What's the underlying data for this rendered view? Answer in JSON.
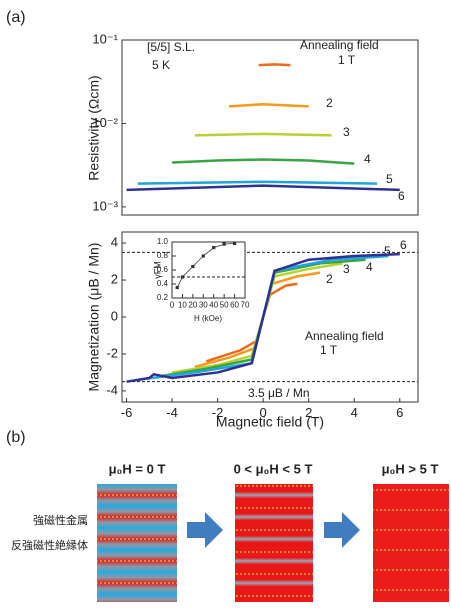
{
  "panel_labels": [
    "(a)",
    "(b)"
  ],
  "chart_data": [
    {
      "type": "line",
      "y_label": "Resistivity (Ωcm)",
      "log_y": true,
      "xlim": [
        -6.2,
        6.8
      ],
      "ylim": [
        0.0008,
        0.1
      ],
      "yticks": [
        {
          "value": 0.001,
          "label": "10⁻³"
        },
        {
          "value": 0.01,
          "label": "10⁻²"
        },
        {
          "value": 0.1,
          "label": "10⁻¹"
        }
      ],
      "annotations": [
        "[5/5] S.L.",
        "5 K",
        "Annealing field"
      ],
      "series": [
        {
          "name": "1 T",
          "color": "#ee6a1a",
          "x": [
            -0.2,
            0.5,
            1.2
          ],
          "values": [
            0.05,
            0.051,
            0.05
          ]
        },
        {
          "name": "2",
          "color": "#f39a1f",
          "x": [
            -1.5,
            0,
            2
          ],
          "values": [
            0.016,
            0.017,
            0.016
          ]
        },
        {
          "name": "3",
          "color": "#b5d334",
          "x": [
            -3,
            0,
            3
          ],
          "values": [
            0.0072,
            0.0075,
            0.0072
          ]
        },
        {
          "name": "4",
          "color": "#3aa445",
          "x": [
            -4,
            -2,
            0,
            2,
            4
          ],
          "values": [
            0.0034,
            0.0036,
            0.0037,
            0.0036,
            0.0033
          ]
        },
        {
          "name": "5",
          "color": "#1fa4dc",
          "x": [
            -5.5,
            0,
            5
          ],
          "values": [
            0.0019,
            0.002,
            0.0019
          ]
        },
        {
          "name": "6",
          "color": "#2e3192",
          "x": [
            -6,
            0,
            6
          ],
          "values": [
            0.0016,
            0.0018,
            0.0016
          ]
        }
      ]
    },
    {
      "type": "line",
      "x_label": "Magnetic field (T)",
      "y_label": "Magnetization (μB / Mn)",
      "xlim": [
        -6.2,
        6.8
      ],
      "ylim": [
        -4.6,
        4.6
      ],
      "xticks": [
        -6,
        -4,
        -2,
        0,
        2,
        4,
        6
      ],
      "yticks": [
        -4,
        -2,
        0,
        2,
        4
      ],
      "hlines": [
        3.5,
        -3.5
      ],
      "annotations": [
        "Annealing field",
        "3.5 μB / Mn"
      ],
      "series": [
        {
          "name": "1 T",
          "color": "#ee6a1a",
          "x": [
            -2.5,
            -1,
            -0.3,
            0,
            0.3,
            1,
            1.5
          ],
          "values": [
            -2.4,
            -1.8,
            -1.3,
            0,
            1.2,
            1.7,
            1.8
          ]
        },
        {
          "name": "2",
          "color": "#f39a1f",
          "x": [
            -3,
            -1.5,
            -0.4,
            0,
            0.4,
            1.5,
            2.5
          ],
          "values": [
            -2.7,
            -2.2,
            -1.7,
            0,
            1.8,
            2.2,
            2.4
          ]
        },
        {
          "name": "3",
          "color": "#b5d334",
          "x": [
            -4,
            -2,
            -0.5,
            0,
            0.5,
            2,
            3.5
          ],
          "values": [
            -3,
            -2.6,
            -2.1,
            0,
            2.2,
            2.6,
            2.9
          ]
        },
        {
          "name": "4",
          "color": "#3aa445",
          "x": [
            -4.5,
            -2.5,
            -0.5,
            0,
            0.5,
            2.5,
            4.5
          ],
          "values": [
            -3.2,
            -2.8,
            -2.3,
            0,
            2.4,
            2.9,
            3.1
          ]
        },
        {
          "name": "5",
          "color": "#1fa4dc",
          "x": [
            -5.5,
            -3,
            -0.5,
            0,
            0.5,
            3,
            5.5
          ],
          "values": [
            -3.4,
            -3,
            -2.5,
            0,
            2.5,
            3.1,
            3.3
          ]
        },
        {
          "name": "6",
          "color": "#2e3192",
          "x": [
            -6,
            -5,
            -4.8,
            -4,
            -2,
            -0.5,
            0,
            0.5,
            2,
            4,
            6
          ],
          "values": [
            -3.5,
            -3.3,
            -3.1,
            -3.3,
            -3,
            -2.5,
            0,
            2.5,
            3.1,
            3.3,
            3.4
          ]
        }
      ]
    },
    {
      "type": "line",
      "markers": true,
      "x_label": "H (kOe)",
      "y_label": "γFM",
      "xlim": [
        0,
        70
      ],
      "ylim": [
        0.2,
        1
      ],
      "xticks": [
        0,
        10,
        20,
        30,
        40,
        50,
        60,
        70
      ],
      "yticks": [
        0.2,
        0.4,
        0.6,
        0.8,
        {
          "value": 1,
          "label": "1.0"
        }
      ],
      "hlines": [
        0.5
      ],
      "series": [
        {
          "color": "#333333",
          "x": [
            5,
            10,
            20,
            30,
            40,
            50,
            60
          ],
          "values": [
            0.35,
            0.5,
            0.65,
            0.8,
            0.92,
            0.97,
            0.98
          ]
        }
      ]
    }
  ],
  "diagram": {
    "titles": [
      "μ₀H = 0 T",
      "0 < μ₀H < 5 T",
      "μ₀H > 5 T"
    ],
    "labels": [
      "強磁性金属",
      "反強磁性絶縁体"
    ]
  }
}
